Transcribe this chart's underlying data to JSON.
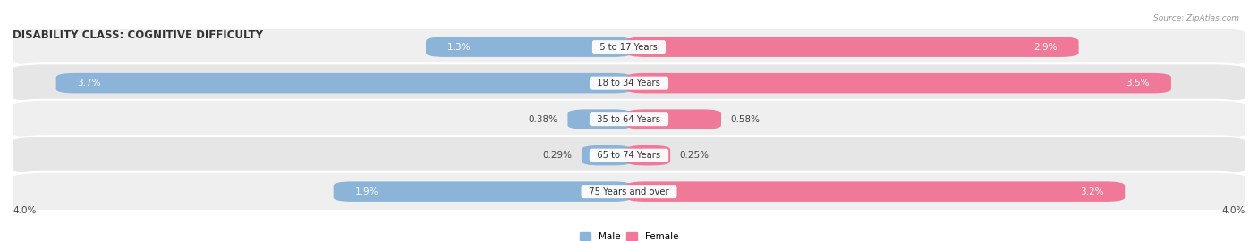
{
  "title": "DISABILITY CLASS: COGNITIVE DIFFICULTY",
  "source": "Source: ZipAtlas.com",
  "categories": [
    "5 to 17 Years",
    "18 to 34 Years",
    "35 to 64 Years",
    "65 to 74 Years",
    "75 Years and over"
  ],
  "male_values": [
    1.3,
    3.7,
    0.38,
    0.29,
    1.9
  ],
  "female_values": [
    2.9,
    3.5,
    0.58,
    0.25,
    3.2
  ],
  "male_color": "#8cb4d8",
  "female_color": "#f07898",
  "row_bg_colors": [
    "#efefef",
    "#e6e6e6",
    "#efefef",
    "#e6e6e6",
    "#efefef"
  ],
  "max_val": 4.0,
  "axis_label": "4.0%",
  "bar_height": 0.52,
  "title_fontsize": 8.5,
  "label_fontsize": 7.5,
  "category_fontsize": 7.2,
  "large_bar_threshold": 1.0
}
